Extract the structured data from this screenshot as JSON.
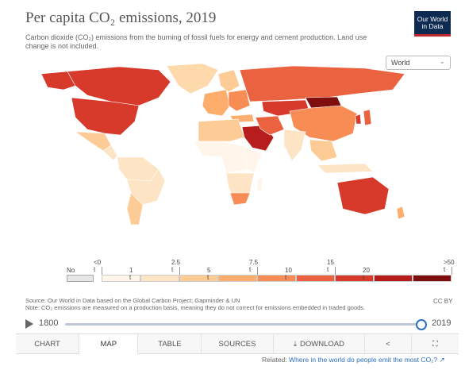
{
  "header": {
    "title": "Per capita CO₂ emissions, 2019",
    "subtitle": "Carbon dioxide (CO₂) emissions from the burning of fossil fuels for energy and cement production. Land use change is not included.",
    "logo_line1": "Our World",
    "logo_line2": "in Data"
  },
  "region_selector": {
    "value": "World",
    "icon": "chevron-down-icon"
  },
  "legend": {
    "no_data_label": "No data",
    "colors": [
      "#fff5eb",
      "#fde4c4",
      "#fdcb96",
      "#fdad6c",
      "#f88c55",
      "#eb6240",
      "#d7392a",
      "#b71d1c",
      "#7f0e0e"
    ],
    "top_ticks": [
      "<0 t",
      "2.5 t",
      "7.5 t",
      "15 t",
      ">50 t"
    ],
    "bottom_ticks": [
      "1 t",
      "5 t",
      "10 t",
      "20 t"
    ],
    "no_data_color": "#e6e6e6"
  },
  "source": {
    "line1": "Source: Our World in Data based on the Global Carbon Project; Gapminder & UN",
    "line2": "Note: CO₂ emissions are measured on a production basis, meaning they do not correct for emissions embedded in traded goods.",
    "license": "CC BY"
  },
  "timeline": {
    "start_year": "1800",
    "end_year": "2019",
    "position": 1.0
  },
  "tabs": [
    {
      "label": "CHART",
      "active": false
    },
    {
      "label": "MAP",
      "active": true
    },
    {
      "label": "TABLE",
      "active": false
    },
    {
      "label": "SOURCES",
      "active": false
    },
    {
      "label": "DOWNLOAD",
      "active": false,
      "icon": "download-icon"
    },
    {
      "label": "",
      "active": false,
      "icon": "share-icon"
    },
    {
      "label": "",
      "active": false,
      "icon": "expand-icon"
    }
  ],
  "related": {
    "prefix": "Related:",
    "link_text": "Where in the world do people emit the most CO₂?"
  }
}
